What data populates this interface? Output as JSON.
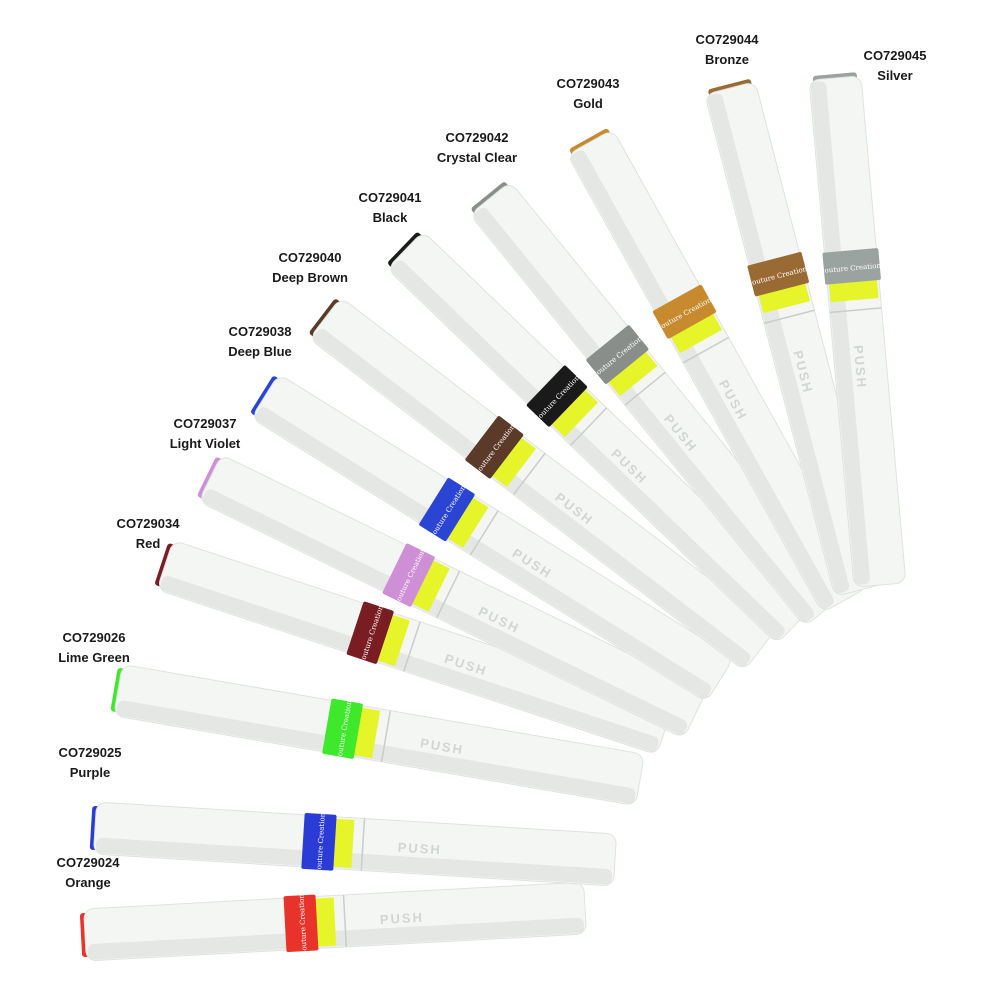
{
  "pens": [
    {
      "code": "CO729024",
      "name": "Orange",
      "color": "#e8332a"
    },
    {
      "code": "CO729025",
      "name": "Purple",
      "color": "#2b3bd6"
    },
    {
      "code": "CO729026",
      "name": "Lime Green",
      "color": "#3ee82a"
    },
    {
      "code": "CO729034",
      "name": "Red",
      "color": "#7a1d22"
    },
    {
      "code": "CO729037",
      "name": "Light Violet",
      "color": "#cf8fd6"
    },
    {
      "code": "CO729038",
      "name": "Deep Blue",
      "color": "#2a45d4"
    },
    {
      "code": "CO729040",
      "name": "Deep Brown",
      "color": "#5c3a2a"
    },
    {
      "code": "CO729041",
      "name": "Black",
      "color": "#1a1a1a"
    },
    {
      "code": "CO729042",
      "name": "Crystal Clear",
      "color": "#8a8e8a"
    },
    {
      "code": "CO729043",
      "name": "Gold",
      "color": "#c88a2e"
    },
    {
      "code": "CO729044",
      "name": "Bronze",
      "color": "#9a6a35"
    },
    {
      "code": "CO729045",
      "name": "Silver",
      "color": "#9aa3a0"
    }
  ],
  "band_text": "Couture Creations",
  "push_text": "PUSH",
  "colors": {
    "body": "#f4f6f4",
    "body_shadow": "#d9ddd9",
    "lime": "#e6f52a"
  }
}
